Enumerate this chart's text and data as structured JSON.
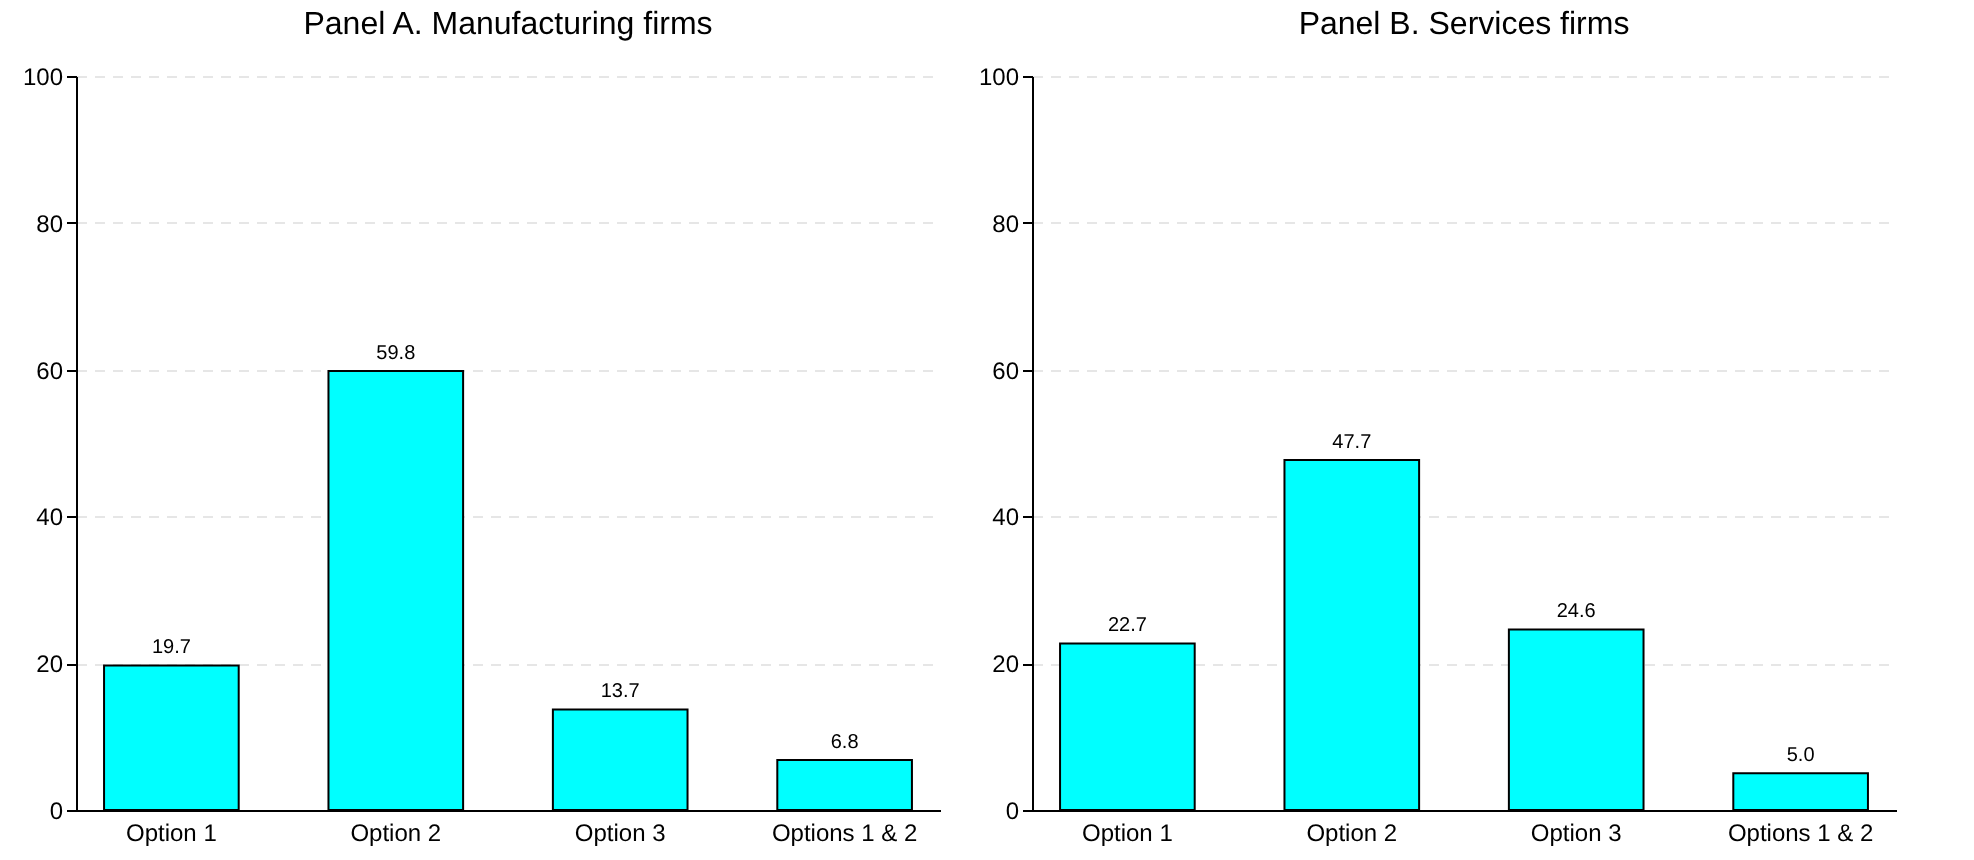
{
  "chart_data": [
    {
      "type": "bar",
      "title": "Panel A. Manufacturing firms",
      "categories": [
        "Option 1",
        "Option 2",
        "Option 3",
        "Options 1 & 2"
      ],
      "values": [
        19.7,
        59.8,
        13.7,
        6.8
      ],
      "value_labels": [
        "19.7",
        "59.8",
        "13.7",
        "6.8"
      ],
      "color": "#00ffff",
      "ylim": [
        0,
        100
      ],
      "yticks": [
        0,
        20,
        40,
        60,
        80,
        100
      ],
      "grid": "y"
    },
    {
      "type": "bar",
      "title": "Panel B. Services firms",
      "categories": [
        "Option 1",
        "Option 2",
        "Option 3",
        "Options 1 & 2"
      ],
      "values": [
        22.7,
        47.7,
        24.6,
        5.0
      ],
      "value_labels": [
        "22.7",
        "47.7",
        "24.6",
        "5.0"
      ],
      "color": "#00ffff",
      "ylim": [
        0,
        100
      ],
      "yticks": [
        0,
        20,
        40,
        60,
        80,
        100
      ],
      "grid": "y"
    }
  ]
}
